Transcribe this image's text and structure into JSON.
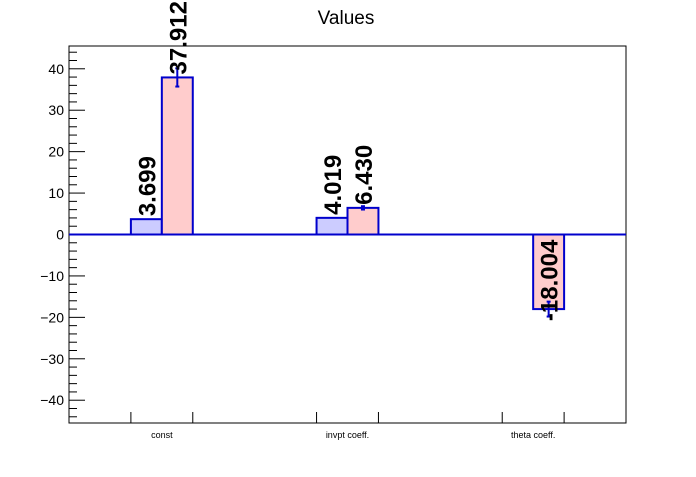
{
  "chart_data": {
    "type": "bar",
    "title": "Values",
    "xlabel": "",
    "ylabel": "",
    "ylim": [
      -45.5,
      45.5
    ],
    "yticks": [
      -40,
      -30,
      -20,
      -10,
      0,
      10,
      20,
      30,
      40
    ],
    "categories": [
      "const",
      "invpt coeff.",
      "theta coeff."
    ],
    "series": [
      {
        "values": [
          3.699,
          4.019,
          null
        ],
        "labels": [
          "3.699",
          "4.019",
          null
        ],
        "errors": [
          null,
          null,
          null
        ],
        "color": "#ccccff",
        "edge_color": "#0000cc"
      },
      {
        "values": [
          37.912,
          6.43,
          -18.004
        ],
        "labels": [
          "37.912",
          "6.430",
          "-18.004"
        ],
        "errors": [
          2.2,
          0.4,
          1.8
        ],
        "color": "#ffcccc",
        "edge_color": "#0000cc"
      }
    ],
    "zero_line_color": "#0000cc",
    "grid": false,
    "legend": "none"
  }
}
